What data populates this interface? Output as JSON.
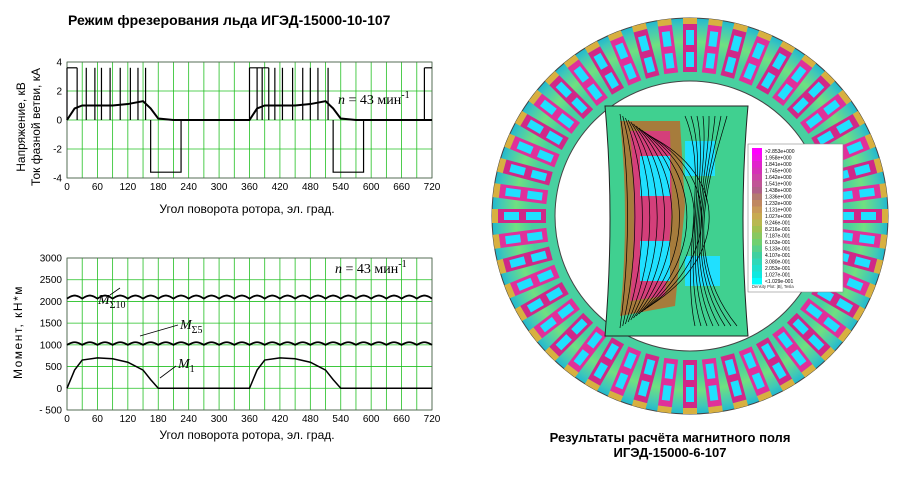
{
  "figure": {
    "left_title": "Режим фрезерования льда ИГЭД-15000-10-107",
    "right_caption_line1": "Результаты расчёта магнитного поля",
    "right_caption_line2": "ИГЭД-15000-6-107"
  },
  "chart_data": [
    {
      "type": "line",
      "ylabel_line1": "Напряжение, кВ",
      "ylabel_line2": "Ток фазной ветви, кА",
      "xlabel": "Угол поворота ротора, эл. град.",
      "annotation": "n = 43 мин",
      "annotation_sup": "-1",
      "xlim": [
        0,
        720
      ],
      "ylim": [
        -4,
        4
      ],
      "x_ticks": [
        0,
        30,
        60,
        90,
        120,
        150,
        180,
        210,
        240,
        270,
        300,
        330,
        360,
        390,
        420,
        450,
        480,
        510,
        540,
        570,
        600,
        630,
        660,
        690,
        720
      ],
      "y_ticks": [
        -4,
        -2,
        0,
        2,
        4
      ],
      "grid": true,
      "series": [
        {
          "color": "#000000",
          "x": [
            0,
            15,
            30,
            60,
            90,
            120,
            150,
            165,
            180,
            210,
            240,
            270,
            300,
            330,
            360,
            375,
            390,
            420,
            450,
            480,
            510,
            525,
            540,
            570,
            600,
            630,
            660,
            690,
            720
          ],
          "y": [
            0,
            0.8,
            1.0,
            1.0,
            1.0,
            1.1,
            1.3,
            0.8,
            0.1,
            0,
            0,
            0,
            0,
            0,
            0,
            0.8,
            1.0,
            1.0,
            1.0,
            1.1,
            1.3,
            0.8,
            0.1,
            0,
            0,
            0,
            0,
            0,
            0
          ]
        }
      ],
      "voltage_pulses": {
        "color": "#000000",
        "positive_level": 3.6,
        "negative_level": -3.6,
        "positive_edges": [
          0,
          20,
          38,
          55,
          68,
          85,
          105,
          125,
          140,
          155,
          360,
          375,
          385,
          398,
          410,
          425,
          445,
          465,
          480,
          495,
          515,
          705
        ],
        "negative_interval_1": [
          165,
          225
        ],
        "negative_interval_2": [
          525,
          585
        ],
        "positive_spans": [
          [
            0,
            20
          ],
          [
            360,
            398
          ],
          [
            705,
            720
          ]
        ]
      }
    },
    {
      "type": "line",
      "ylabel": "Момент, кН*м",
      "xlabel": "Угол поворота ротора, эл. град.",
      "annotation": "n = 43 мин",
      "annotation_sup": "-1",
      "xlim": [
        0,
        720
      ],
      "ylim": [
        -500,
        3000
      ],
      "x_ticks": [
        0,
        30,
        60,
        90,
        120,
        150,
        180,
        210,
        240,
        270,
        300,
        330,
        360,
        390,
        420,
        450,
        480,
        510,
        540,
        570,
        600,
        630,
        660,
        690,
        720
      ],
      "y_ticks": [
        -500,
        0,
        500,
        1000,
        1500,
        2000,
        2500,
        3000
      ],
      "grid": true,
      "series": [
        {
          "name": "M",
          "name_sub": "Σ10",
          "color": "#000000",
          "mean": 2100,
          "ripple": 70,
          "periods": 24
        },
        {
          "name": "M",
          "name_sub": "Σ5",
          "color": "#000000",
          "mean": 1030,
          "ripple": 60,
          "periods": 24
        },
        {
          "name": "M",
          "name_sub": "1",
          "color": "#000000",
          "x": [
            0,
            15,
            30,
            60,
            90,
            120,
            150,
            165,
            180,
            210,
            240,
            270,
            300,
            330,
            360,
            375,
            390,
            420,
            450,
            480,
            510,
            525,
            540,
            570,
            600,
            630,
            660,
            690,
            720
          ],
          "y": [
            0,
            420,
            650,
            700,
            680,
            600,
            420,
            200,
            0,
            0,
            0,
            0,
            0,
            0,
            0,
            420,
            650,
            700,
            680,
            600,
            420,
            200,
            0,
            0,
            0,
            0,
            0,
            0,
            0
          ]
        }
      ]
    }
  ],
  "field_legend": {
    "entries": [
      ">2.853e+000",
      "1.958e+000",
      "1.841e+000",
      "1.745e+000",
      "1.642e+000",
      "1.541e+000",
      "1.438e+000",
      "1.336e+000",
      "1.232e+000",
      "1.131e+000",
      "1.027e+000",
      "9.246e-001",
      "8.216e-001",
      "7.187e-001",
      "6.163e-001",
      "5.133e-001",
      "4.107e-001",
      "3.080e-001",
      "2.053e-001",
      "1.027e-001",
      "<1.029e-001"
    ],
    "footer": "Density Plot: |B|, Tesla",
    "colors": [
      "#ff00ff",
      "#f014e6",
      "#e023cc",
      "#d531b8",
      "#cc44a6",
      "#c05596",
      "#b06088",
      "#b47a70",
      "#c08860",
      "#c89a58",
      "#c8aa50",
      "#b8b850",
      "#a0c050",
      "#88c860",
      "#70d070",
      "#58d08a",
      "#40d0a0",
      "#30d8b8",
      "#20e0cc",
      "#10e8e0",
      "#00ffff"
    ]
  }
}
